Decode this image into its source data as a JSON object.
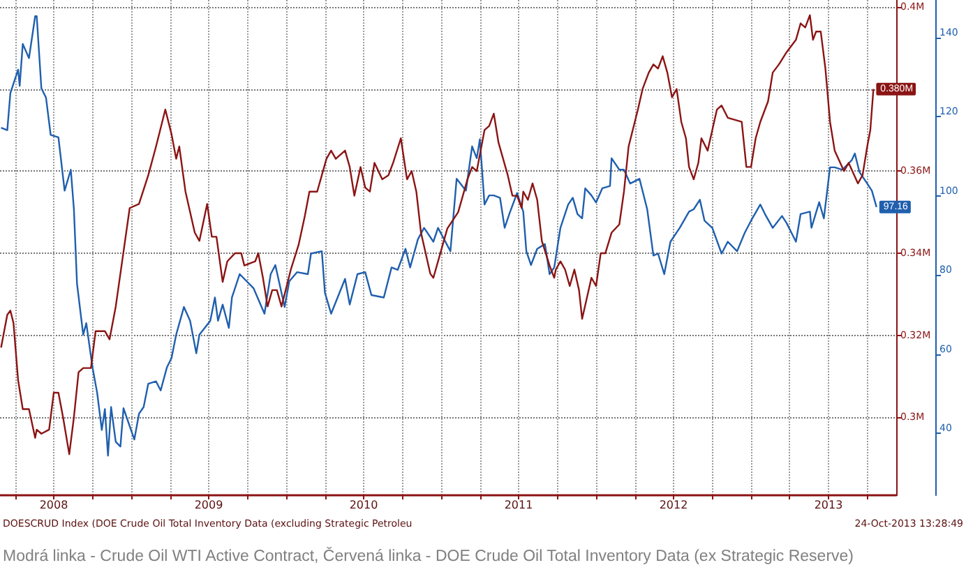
{
  "chart_data": {
    "type": "line",
    "grid": true,
    "marker": "none",
    "line_style": "solid",
    "xlim": [
      2008.153,
      2013.937
    ],
    "xticks": [
      {
        "value": 2008.25,
        "label": null
      },
      {
        "value": 2008.5,
        "label": "2008"
      },
      {
        "value": 2008.75,
        "label": null
      },
      {
        "value": 2009,
        "label": null
      },
      {
        "value": 2009.25,
        "label": null
      },
      {
        "value": 2009.5,
        "label": "2009"
      },
      {
        "value": 2009.75,
        "label": null
      },
      {
        "value": 2010,
        "label": null
      },
      {
        "value": 2010.25,
        "label": null
      },
      {
        "value": 2010.5,
        "label": "2010"
      },
      {
        "value": 2010.75,
        "label": null
      },
      {
        "value": 2011,
        "label": null
      },
      {
        "value": 2011.25,
        "label": null
      },
      {
        "value": 2011.5,
        "label": "2011"
      },
      {
        "value": 2011.75,
        "label": null
      },
      {
        "value": 2012,
        "label": null
      },
      {
        "value": 2012.25,
        "label": null
      },
      {
        "value": 2012.5,
        "label": "2012"
      },
      {
        "value": 2012.75,
        "label": null
      },
      {
        "value": 2013,
        "label": null
      },
      {
        "value": 2013.25,
        "label": null
      },
      {
        "value": 2013.5,
        "label": "2013"
      },
      {
        "value": 2013.75,
        "label": null
      }
    ],
    "ylim": [
      0.281,
      0.4017
    ],
    "yticks": [
      {
        "value": 0.3,
        "label": "0.3M"
      },
      {
        "value": 0.32,
        "label": "0.32M"
      },
      {
        "value": 0.34,
        "label": "0.34M"
      },
      {
        "value": 0.36,
        "label": "0.36M"
      },
      {
        "value": 0.38,
        "label": null
      },
      {
        "value": 0.4,
        "label": "0.4M"
      }
    ],
    "y2lim": [
      24.3,
      149.5
    ],
    "y2ticks": [
      40,
      60,
      80,
      100,
      120,
      140
    ],
    "series": [
      {
        "color": "#1f5fae",
        "axis": "y2",
        "x": [
          2008.16,
          2008.2,
          2008.22,
          2008.27,
          2008.28,
          2008.3,
          2008.34,
          2008.38,
          2008.39,
          2008.42,
          2008.45,
          2008.48,
          2008.53,
          2008.57,
          2008.61,
          2008.63,
          2008.65,
          2008.69,
          2008.71,
          2008.75,
          2008.78,
          2008.81,
          2008.83,
          2008.85,
          2008.87,
          2008.9,
          2008.93,
          2008.95,
          2009.02,
          2009.05,
          2009.08,
          2009.11,
          2009.16,
          2009.19,
          2009.23,
          2009.26,
          2009.29,
          2009.34,
          2009.38,
          2009.42,
          2009.44,
          2009.51,
          2009.54,
          2009.56,
          2009.59,
          2009.63,
          2009.65,
          2009.7,
          2009.79,
          2009.86,
          2009.9,
          2009.93,
          2009.99,
          2010.02,
          2010.07,
          2010.14,
          2010.16,
          2010.23,
          2010.25,
          2010.29,
          2010.38,
          2010.41,
          2010.46,
          2010.51,
          2010.55,
          2010.63,
          2010.68,
          2010.72,
          2010.77,
          2010.8,
          2010.85,
          2010.89,
          2010.95,
          2010.98,
          2011.06,
          2011.1,
          2011.16,
          2011.2,
          2011.23,
          2011.25,
          2011.28,
          2011.31,
          2011.34,
          2011.38,
          2011.41,
          2011.44,
          2011.49,
          2011.53,
          2011.55,
          2011.58,
          2011.62,
          2011.67,
          2011.7,
          2011.73,
          2011.77,
          2011.82,
          2011.85,
          2011.88,
          2011.91,
          2011.93,
          2011.97,
          2012.0,
          2012.04,
          2012.09,
          2012.1,
          2012.15,
          2012.18,
          2012.22,
          2012.28,
          2012.33,
          2012.37,
          2012.4,
          2012.44,
          2012.48,
          2012.54,
          2012.6,
          2012.63,
          2012.67,
          2012.7,
          2012.75,
          2012.81,
          2012.85,
          2012.91,
          2012.96,
          2013.0,
          2013.06,
          2013.09,
          2013.14,
          2013.2,
          2013.23,
          2013.29,
          2013.32,
          2013.38,
          2013.39,
          2013.44,
          2013.47,
          2013.51,
          2013.54,
          2013.59,
          2013.65,
          2013.67,
          2013.7,
          2013.75,
          2013.78,
          2013.81
        ],
        "values": [
          117.2,
          116.6,
          126.0,
          131.9,
          127.8,
          138.4,
          134.8,
          145.4,
          145.4,
          127.2,
          124.8,
          115.4,
          114.8,
          101.3,
          106.6,
          96.6,
          77.8,
          64.9,
          67.8,
          56.6,
          50.2,
          40.8,
          46.1,
          34.3,
          46.6,
          37.8,
          36.6,
          46.3,
          38.4,
          44.9,
          46.6,
          52.5,
          53.1,
          50.8,
          56.6,
          59.0,
          64.9,
          71.9,
          68.4,
          60.2,
          64.9,
          68.4,
          74.3,
          68.4,
          72.5,
          66.6,
          74.3,
          80.2,
          76.6,
          70.2,
          80.2,
          82.5,
          71.9,
          78.4,
          80.7,
          80.2,
          85.4,
          86.0,
          75.5,
          70.2,
          79.0,
          72.5,
          80.2,
          80.7,
          74.9,
          74.3,
          81.9,
          81.3,
          86.6,
          81.9,
          89.0,
          91.9,
          88.4,
          91.9,
          86.0,
          104.3,
          101.3,
          112.5,
          109.5,
          114.3,
          97.8,
          100.1,
          100.1,
          99.5,
          91.9,
          95.4,
          100.7,
          96.0,
          86.0,
          82.5,
          86.6,
          87.8,
          80.2,
          81.9,
          91.9,
          97.8,
          99.5,
          95.4,
          94.3,
          101.9,
          100.1,
          98.3,
          101.9,
          102.5,
          109.5,
          106.6,
          106.6,
          103.1,
          104.3,
          96.6,
          84.9,
          85.4,
          80.2,
          88.4,
          91.9,
          96.0,
          96.6,
          99.0,
          93.7,
          91.9,
          85.4,
          88.4,
          86.0,
          90.7,
          93.7,
          97.8,
          95.4,
          91.9,
          94.9,
          93.1,
          88.4,
          95.4,
          96.0,
          91.9,
          98.4,
          94.3,
          107.2,
          107.2,
          106.6,
          109.0,
          110.7,
          106.0,
          103.1,
          101.3,
          97.16
        ],
        "value_labels": [
          null,
          null,
          null,
          null,
          null,
          null,
          null,
          null,
          null,
          null,
          null,
          null,
          null,
          null,
          null,
          null,
          null,
          null,
          null,
          null,
          null,
          null,
          null,
          null,
          null,
          null,
          null,
          null,
          null,
          null,
          null,
          null,
          null,
          null,
          null,
          null,
          null,
          null,
          null,
          null,
          null,
          null,
          null,
          null,
          null,
          null,
          null,
          null,
          null,
          null,
          null,
          null,
          null,
          null,
          null,
          null,
          null,
          null,
          null,
          null,
          null,
          null,
          null,
          null,
          null,
          null,
          null,
          null,
          null,
          null,
          null,
          null,
          null,
          null,
          null,
          null,
          null,
          null,
          null,
          null,
          null,
          null,
          null,
          null,
          null,
          null,
          null,
          null,
          null,
          null,
          null,
          null,
          null,
          null,
          null,
          null,
          null,
          null,
          null,
          null,
          null,
          null,
          null,
          null,
          null,
          null,
          null,
          null,
          null,
          null,
          null,
          null,
          null,
          null,
          null,
          null,
          null,
          null,
          null,
          null,
          null,
          null,
          null,
          null,
          null,
          null,
          null,
          null,
          null,
          null,
          null,
          null,
          null,
          null,
          null,
          null,
          null,
          null,
          null,
          null,
          null,
          null,
          null,
          null,
          "97.16"
        ]
      },
      {
        "color": "#8b1414",
        "axis": "y",
        "x": [
          2008.16,
          2008.2,
          2008.22,
          2008.24,
          2008.27,
          2008.3,
          2008.34,
          2008.38,
          2008.39,
          2008.42,
          2008.47,
          2008.5,
          2008.53,
          2008.56,
          2008.6,
          2008.63,
          2008.66,
          2008.69,
          2008.74,
          2008.77,
          2008.83,
          2008.86,
          2008.9,
          2008.96,
          2008.99,
          2009.05,
          2009.11,
          2009.16,
          2009.22,
          2009.26,
          2009.29,
          2009.31,
          2009.35,
          2009.41,
          2009.44,
          2009.49,
          2009.52,
          2009.55,
          2009.59,
          2009.62,
          2009.67,
          2009.71,
          2009.73,
          2009.8,
          2009.82,
          2009.85,
          2009.88,
          2009.91,
          2009.94,
          2009.97,
          2010.03,
          2010.08,
          2010.12,
          2010.15,
          2010.2,
          2010.26,
          2010.29,
          2010.32,
          2010.38,
          2010.41,
          2010.44,
          2010.48,
          2010.51,
          2010.54,
          2010.57,
          2010.62,
          2010.66,
          2010.69,
          2010.74,
          2010.78,
          2010.81,
          2010.84,
          2010.87,
          2010.93,
          2010.95,
          2011.01,
          2011.04,
          2011.11,
          2011.17,
          2011.2,
          2011.23,
          2011.28,
          2011.31,
          2011.34,
          2011.37,
          2011.4,
          2011.43,
          2011.46,
          2011.49,
          2011.52,
          2011.53,
          2011.56,
          2011.59,
          2011.62,
          2011.65,
          2011.7,
          2011.73,
          2011.74,
          2011.77,
          2011.8,
          2011.83,
          2011.86,
          2011.89,
          2011.91,
          2011.94,
          2011.97,
          2012.0,
          2012.03,
          2012.06,
          2012.1,
          2012.15,
          2012.18,
          2012.21,
          2012.27,
          2012.3,
          2012.34,
          2012.37,
          2012.4,
          2012.43,
          2012.46,
          2012.49,
          2012.52,
          2012.55,
          2012.58,
          2012.6,
          2012.63,
          2012.66,
          2012.68,
          2012.72,
          2012.75,
          2012.78,
          2012.81,
          2012.85,
          2012.94,
          2012.97,
          2013.0,
          2013.03,
          2013.06,
          2013.11,
          2013.14,
          2013.18,
          2013.23,
          2013.29,
          2013.32,
          2013.35,
          2013.38,
          2013.4,
          2013.42,
          2013.45,
          2013.48,
          2013.51,
          2013.54,
          2013.6,
          2013.63,
          2013.69,
          2013.72,
          2013.75,
          2013.77,
          2013.79
        ],
        "values": [
          0.317,
          0.325,
          0.326,
          0.323,
          0.309,
          0.302,
          0.302,
          0.295,
          0.297,
          0.296,
          0.297,
          0.306,
          0.306,
          0.3,
          0.291,
          0.3,
          0.311,
          0.312,
          0.312,
          0.321,
          0.321,
          0.319,
          0.327,
          0.343,
          0.351,
          0.352,
          0.359,
          0.366,
          0.375,
          0.369,
          0.363,
          0.366,
          0.355,
          0.345,
          0.343,
          0.352,
          0.344,
          0.344,
          0.333,
          0.338,
          0.34,
          0.34,
          0.337,
          0.338,
          0.34,
          0.334,
          0.327,
          0.331,
          0.331,
          0.327,
          0.336,
          0.342,
          0.349,
          0.355,
          0.355,
          0.363,
          0.365,
          0.363,
          0.365,
          0.361,
          0.354,
          0.361,
          0.356,
          0.355,
          0.362,
          0.358,
          0.359,
          0.362,
          0.368,
          0.358,
          0.36,
          0.355,
          0.345,
          0.335,
          0.334,
          0.342,
          0.346,
          0.35,
          0.358,
          0.361,
          0.36,
          0.37,
          0.371,
          0.374,
          0.367,
          0.363,
          0.359,
          0.354,
          0.354,
          0.351,
          0.355,
          0.353,
          0.357,
          0.353,
          0.343,
          0.337,
          0.334,
          0.336,
          0.338,
          0.336,
          0.332,
          0.336,
          0.331,
          0.324,
          0.329,
          0.334,
          0.332,
          0.34,
          0.34,
          0.345,
          0.347,
          0.355,
          0.366,
          0.375,
          0.38,
          0.384,
          0.386,
          0.385,
          0.388,
          0.384,
          0.378,
          0.38,
          0.372,
          0.368,
          0.361,
          0.358,
          0.362,
          0.368,
          0.365,
          0.37,
          0.375,
          0.376,
          0.373,
          0.372,
          0.361,
          0.361,
          0.368,
          0.372,
          0.377,
          0.384,
          0.386,
          0.389,
          0.392,
          0.396,
          0.395,
          0.398,
          0.392,
          0.394,
          0.394,
          0.385,
          0.372,
          0.365,
          0.36,
          0.362,
          0.357,
          0.359,
          0.366,
          0.37,
          0.38
        ],
        "value_labels": [
          null,
          null,
          null,
          null,
          null,
          null,
          null,
          null,
          null,
          null,
          null,
          null,
          null,
          null,
          null,
          null,
          null,
          null,
          null,
          null,
          null,
          null,
          null,
          null,
          null,
          null,
          null,
          null,
          null,
          null,
          null,
          null,
          null,
          null,
          null,
          null,
          null,
          null,
          null,
          null,
          null,
          null,
          null,
          null,
          null,
          null,
          null,
          null,
          null,
          null,
          null,
          null,
          null,
          null,
          null,
          null,
          null,
          null,
          null,
          null,
          null,
          null,
          null,
          null,
          null,
          null,
          null,
          null,
          null,
          null,
          null,
          null,
          null,
          null,
          null,
          null,
          null,
          null,
          null,
          null,
          null,
          null,
          null,
          null,
          null,
          null,
          null,
          null,
          null,
          null,
          null,
          null,
          null,
          null,
          null,
          null,
          null,
          null,
          null,
          null,
          null,
          null,
          null,
          null,
          null,
          null,
          null,
          null,
          null,
          null,
          null,
          null,
          null,
          null,
          null,
          null,
          null,
          null,
          null,
          null,
          null,
          null,
          null,
          null,
          null,
          null,
          null,
          null,
          null,
          null,
          null,
          null,
          null,
          null,
          null,
          null,
          null,
          null,
          null,
          null,
          null,
          null,
          null,
          null,
          null,
          null,
          null,
          null,
          null,
          null,
          null,
          null,
          null,
          null,
          null,
          null,
          null,
          null,
          "0.380M"
        ]
      }
    ],
    "annotations": [
      "DOESCRUD Index (DOE Crude Oil Total Inventory Data (excluding Strategic Petroleu",
      "24-Oct-2013 13:28:49",
      "Modrá linka - Crude Oil WTI Active Contract, Červená linka - DOE Crude Oil Total Inventory Data (ex Strategic Reserve)"
    ]
  }
}
